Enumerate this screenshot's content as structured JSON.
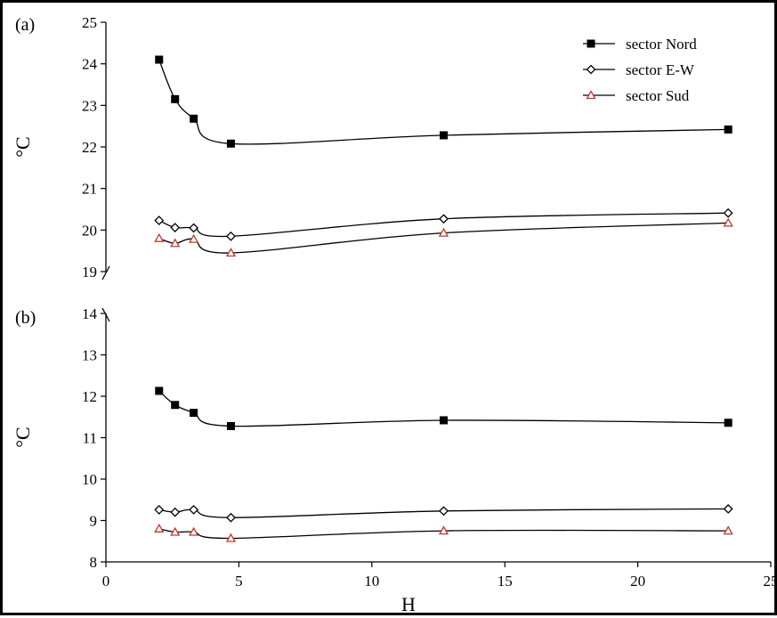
{
  "chart_data": [
    {
      "type": "line",
      "panel_label": "(a)",
      "ylabel": "°C",
      "xlabel": "",
      "ylim": [
        19,
        25
      ],
      "yticks": [
        "19",
        "20",
        "21",
        "22",
        "23",
        "24",
        "25"
      ],
      "x": [
        2.0,
        2.6,
        3.3,
        4.7,
        12.7,
        23.4
      ],
      "series": [
        {
          "name": "sector Nord",
          "marker": "square",
          "color": "#000000",
          "values": [
            24.1,
            23.15,
            22.68,
            22.08,
            22.28,
            22.42
          ]
        },
        {
          "name": "sector E-W",
          "marker": "diamond",
          "color": "#000000",
          "values": [
            20.23,
            20.06,
            20.05,
            19.85,
            20.27,
            20.41
          ]
        },
        {
          "name": "sector Sud",
          "marker": "triangle",
          "color": "#c0392b",
          "values": [
            19.8,
            19.68,
            19.78,
            19.45,
            19.93,
            20.17
          ]
        }
      ],
      "legend": "top-right"
    },
    {
      "type": "line",
      "panel_label": "(b)",
      "ylabel": "°C",
      "xlabel": "H",
      "ylim": [
        8,
        14
      ],
      "yticks": [
        "8",
        "9",
        "10",
        "11",
        "12",
        "13",
        "14"
      ],
      "xlim": [
        0,
        25
      ],
      "xticks": [
        "0",
        "5",
        "10",
        "15",
        "20",
        "25"
      ],
      "x": [
        2.0,
        2.6,
        3.3,
        4.7,
        12.7,
        23.4
      ],
      "series": [
        {
          "name": "sector Nord",
          "marker": "square",
          "color": "#000000",
          "values": [
            12.13,
            11.79,
            11.6,
            11.28,
            11.42,
            11.36
          ]
        },
        {
          "name": "sector E-W",
          "marker": "diamond",
          "color": "#000000",
          "values": [
            9.26,
            9.2,
            9.26,
            9.07,
            9.23,
            9.28
          ]
        },
        {
          "name": "sector Sud",
          "marker": "triangle",
          "color": "#c0392b",
          "values": [
            8.8,
            8.72,
            8.72,
            8.57,
            8.75,
            8.75
          ]
        }
      ]
    }
  ]
}
